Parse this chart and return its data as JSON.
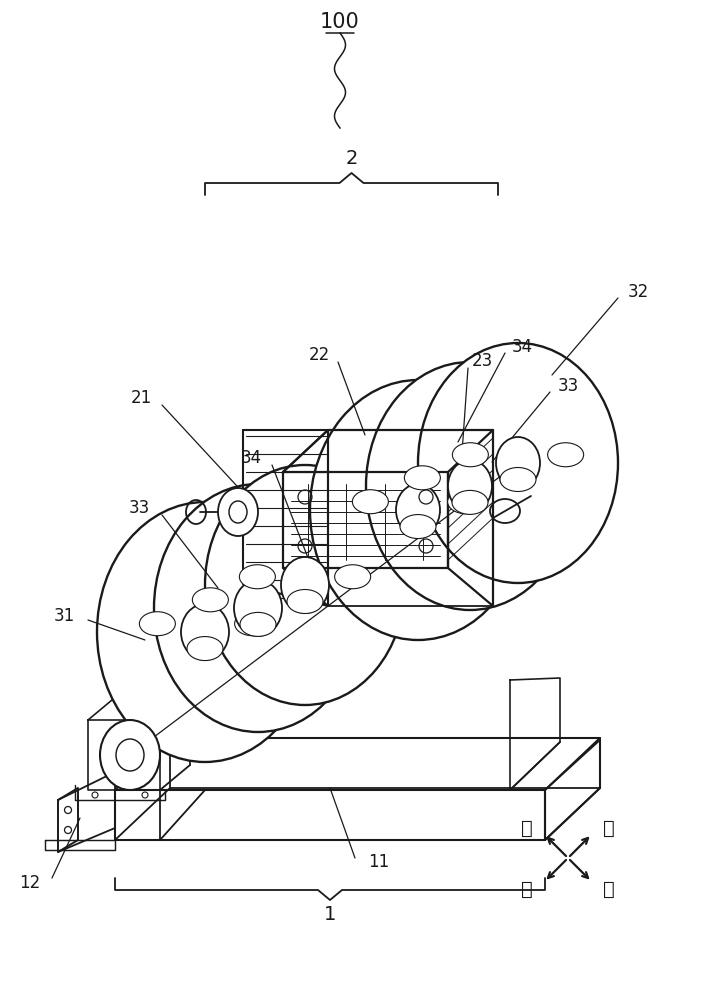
{
  "bg_color": "#ffffff",
  "line_color": "#1a1a1a",
  "text_color": "#1a1a1a",
  "label_100": "100",
  "label_1": "1",
  "label_2": "2",
  "label_11": "11",
  "label_12": "12",
  "label_21": "21",
  "label_22": "22",
  "label_23": "23",
  "label_31": "31",
  "label_32": "32",
  "label_33": "33",
  "label_34": "34",
  "dir_back": "后",
  "dir_right": "右",
  "dir_left": "左",
  "dir_front": "前",
  "figw": 7.21,
  "figh": 10.0,
  "dpi": 100
}
